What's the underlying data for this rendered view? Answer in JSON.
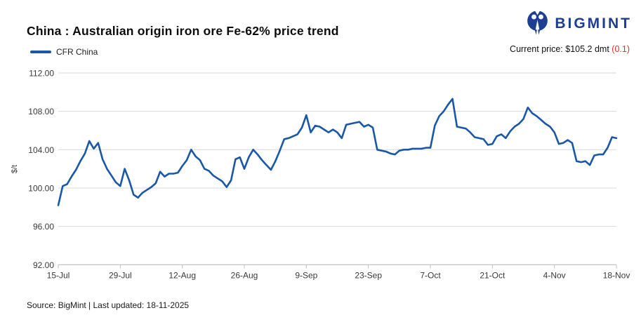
{
  "header": {
    "title": "China : Australian origin iron ore Fe-62% price trend",
    "brand": {
      "name": "BIGMINT",
      "icon": "bigmint-people-icon",
      "color": "#1c3f94"
    },
    "current_price": {
      "label": "Current price:",
      "value": "$105.2 dmt",
      "change": "(0.1)",
      "change_color": "#d93025"
    }
  },
  "legend": {
    "series_label": "CFR China",
    "swatch_color": "#1957a8"
  },
  "footer": {
    "note": "Source: BigMint | Last updated: 18-11-2025"
  },
  "chart_data": {
    "type": "line",
    "title": "China : Australian origin iron ore Fe-62% price trend",
    "xlabel": "",
    "ylabel": "$/t",
    "ylim": [
      92,
      112
    ],
    "grid": "horizontal",
    "legend_position": "top-left",
    "line_color": "#1957a8",
    "y_ticks": [
      {
        "label": "112.00",
        "value": 112
      },
      {
        "label": "108.00",
        "value": 108
      },
      {
        "label": "104.00",
        "value": 104
      },
      {
        "label": "100.00",
        "value": 100
      },
      {
        "label": "96.00",
        "value": 96
      },
      {
        "label": "92.00",
        "value": 92
      }
    ],
    "x_ticks": [
      "15-Jul",
      "29-Jul",
      "12-Aug",
      "26-Aug",
      "9-Sep",
      "23-Sep",
      "7-Oct",
      "21-Oct",
      "4-Nov",
      "18-Nov"
    ],
    "x_range": [
      "15-Jul-2025",
      "18-Nov-2025"
    ],
    "series": [
      {
        "name": "CFR China",
        "color": "#1957a8",
        "points": [
          [
            "15-Jul",
            98.2
          ],
          [
            "16-Jul",
            100.2
          ],
          [
            "17-Jul",
            100.4
          ],
          [
            "18-Jul",
            101.2
          ],
          [
            "19-Jul",
            101.9
          ],
          [
            "20-Jul",
            102.8
          ],
          [
            "21-Jul",
            103.6
          ],
          [
            "22-Jul",
            104.9
          ],
          [
            "23-Jul",
            104.1
          ],
          [
            "24-Jul",
            104.7
          ],
          [
            "25-Jul",
            103.0
          ],
          [
            "26-Jul",
            102.0
          ],
          [
            "27-Jul",
            101.3
          ],
          [
            "28-Jul",
            100.6
          ],
          [
            "29-Jul",
            100.2
          ],
          [
            "30-Jul",
            102.0
          ],
          [
            "31-Jul",
            100.8
          ],
          [
            "1-Aug",
            99.3
          ],
          [
            "2-Aug",
            99.0
          ],
          [
            "3-Aug",
            99.5
          ],
          [
            "4-Aug",
            99.8
          ],
          [
            "5-Aug",
            100.1
          ],
          [
            "6-Aug",
            100.5
          ],
          [
            "7-Aug",
            101.7
          ],
          [
            "8-Aug",
            101.2
          ],
          [
            "9-Aug",
            101.5
          ],
          [
            "10-Aug",
            101.5
          ],
          [
            "11-Aug",
            101.6
          ],
          [
            "12-Aug",
            102.3
          ],
          [
            "13-Aug",
            102.9
          ],
          [
            "14-Aug",
            104.0
          ],
          [
            "15-Aug",
            103.3
          ],
          [
            "16-Aug",
            102.9
          ],
          [
            "17-Aug",
            102.0
          ],
          [
            "18-Aug",
            101.8
          ],
          [
            "19-Aug",
            101.3
          ],
          [
            "20-Aug",
            101.0
          ],
          [
            "21-Aug",
            100.7
          ],
          [
            "22-Aug",
            100.1
          ],
          [
            "23-Aug",
            100.8
          ],
          [
            "24-Aug",
            103.0
          ],
          [
            "25-Aug",
            103.2
          ],
          [
            "26-Aug",
            102.0
          ],
          [
            "27-Aug",
            103.2
          ],
          [
            "28-Aug",
            104.0
          ],
          [
            "29-Aug",
            103.5
          ],
          [
            "30-Aug",
            102.9
          ],
          [
            "31-Aug",
            102.4
          ],
          [
            "1-Sep",
            101.9
          ],
          [
            "2-Sep",
            102.8
          ],
          [
            "3-Sep",
            103.9
          ],
          [
            "4-Sep",
            105.1
          ],
          [
            "5-Sep",
            105.2
          ],
          [
            "6-Sep",
            105.4
          ],
          [
            "7-Sep",
            105.6
          ],
          [
            "8-Sep",
            106.3
          ],
          [
            "9-Sep",
            107.6
          ],
          [
            "10-Sep",
            105.8
          ],
          [
            "11-Sep",
            106.5
          ],
          [
            "12-Sep",
            106.4
          ],
          [
            "13-Sep",
            106.1
          ],
          [
            "14-Sep",
            105.8
          ],
          [
            "15-Sep",
            106.1
          ],
          [
            "16-Sep",
            105.8
          ],
          [
            "17-Sep",
            105.2
          ],
          [
            "18-Sep",
            106.6
          ],
          [
            "19-Sep",
            106.7
          ],
          [
            "20-Sep",
            106.8
          ],
          [
            "21-Sep",
            106.9
          ],
          [
            "22-Sep",
            106.4
          ],
          [
            "23-Sep",
            106.6
          ],
          [
            "24-Sep",
            106.3
          ],
          [
            "25-Sep",
            104.0
          ],
          [
            "26-Sep",
            103.9
          ],
          [
            "27-Sep",
            103.8
          ],
          [
            "28-Sep",
            103.6
          ],
          [
            "29-Sep",
            103.5
          ],
          [
            "30-Sep",
            103.9
          ],
          [
            "1-Oct",
            104.0
          ],
          [
            "2-Oct",
            104.0
          ],
          [
            "3-Oct",
            104.1
          ],
          [
            "4-Oct",
            104.1
          ],
          [
            "5-Oct",
            104.1
          ],
          [
            "6-Oct",
            104.2
          ],
          [
            "7-Oct",
            104.2
          ],
          [
            "8-Oct",
            106.5
          ],
          [
            "9-Oct",
            107.5
          ],
          [
            "10-Oct",
            108.0
          ],
          [
            "11-Oct",
            108.7
          ],
          [
            "12-Oct",
            109.3
          ],
          [
            "13-Oct",
            106.4
          ],
          [
            "14-Oct",
            106.3
          ],
          [
            "15-Oct",
            106.2
          ],
          [
            "16-Oct",
            105.8
          ],
          [
            "17-Oct",
            105.3
          ],
          [
            "18-Oct",
            105.2
          ],
          [
            "19-Oct",
            105.1
          ],
          [
            "20-Oct",
            104.5
          ],
          [
            "21-Oct",
            104.6
          ],
          [
            "22-Oct",
            105.4
          ],
          [
            "23-Oct",
            105.6
          ],
          [
            "24-Oct",
            105.2
          ],
          [
            "25-Oct",
            105.9
          ],
          [
            "26-Oct",
            106.4
          ],
          [
            "27-Oct",
            106.7
          ],
          [
            "28-Oct",
            107.2
          ],
          [
            "29-Oct",
            108.4
          ],
          [
            "30-Oct",
            107.8
          ],
          [
            "31-Oct",
            107.5
          ],
          [
            "1-Nov",
            107.1
          ],
          [
            "2-Nov",
            106.7
          ],
          [
            "3-Nov",
            106.4
          ],
          [
            "4-Nov",
            105.8
          ],
          [
            "5-Nov",
            104.6
          ],
          [
            "6-Nov",
            104.7
          ],
          [
            "7-Nov",
            105.0
          ],
          [
            "8-Nov",
            104.7
          ],
          [
            "9-Nov",
            102.8
          ],
          [
            "10-Nov",
            102.7
          ],
          [
            "11-Nov",
            102.8
          ],
          [
            "12-Nov",
            102.4
          ],
          [
            "13-Nov",
            103.4
          ],
          [
            "14-Nov",
            103.5
          ],
          [
            "15-Nov",
            103.5
          ],
          [
            "16-Nov",
            104.2
          ],
          [
            "17-Nov",
            105.3
          ],
          [
            "18-Nov",
            105.2
          ]
        ]
      }
    ]
  }
}
